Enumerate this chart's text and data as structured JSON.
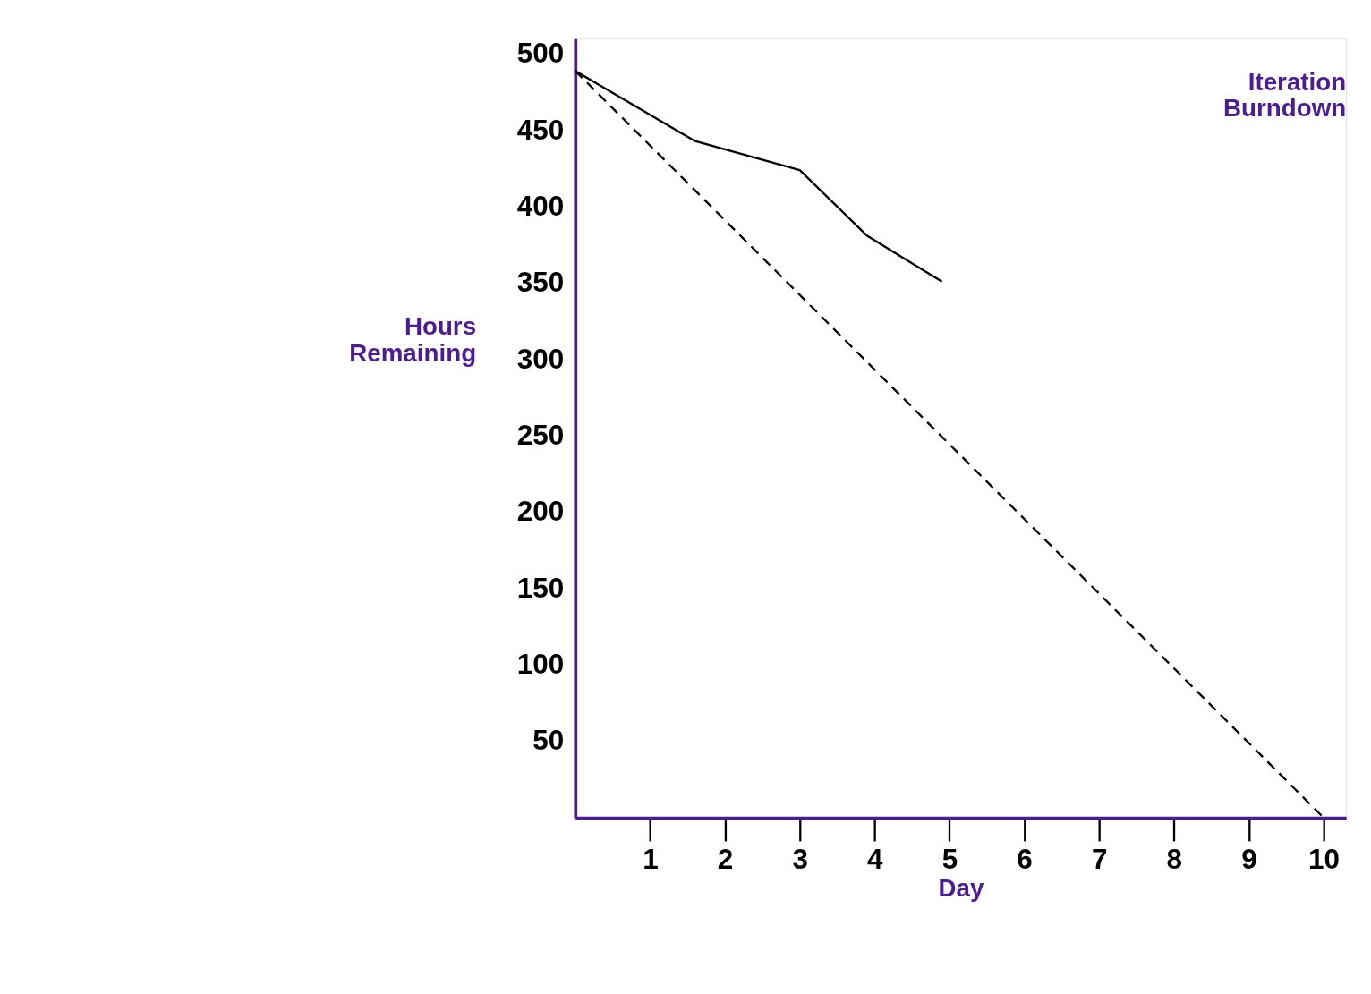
{
  "chart_data": {
    "type": "line",
    "title": "Iteration Burndown",
    "xlabel": "Day",
    "ylabel": "Hours Remaining",
    "xlim": [
      0,
      10.3
    ],
    "ylim": [
      0,
      510
    ],
    "xticks": [
      1,
      2,
      3,
      4,
      5,
      6,
      7,
      8,
      9,
      10
    ],
    "yticks": [
      50,
      100,
      150,
      200,
      250,
      300,
      350,
      400,
      450,
      500
    ],
    "grid": false,
    "series": [
      {
        "color": "#000000",
        "line_style": "solid",
        "x": [
          0,
          1.6,
          3.0,
          3.9,
          4.9
        ],
        "values": [
          489,
          443,
          424,
          381,
          351
        ]
      },
      {
        "color": "#000000",
        "line_style": "dashed",
        "x": [
          0,
          10
        ],
        "values": [
          489,
          0
        ]
      }
    ]
  }
}
